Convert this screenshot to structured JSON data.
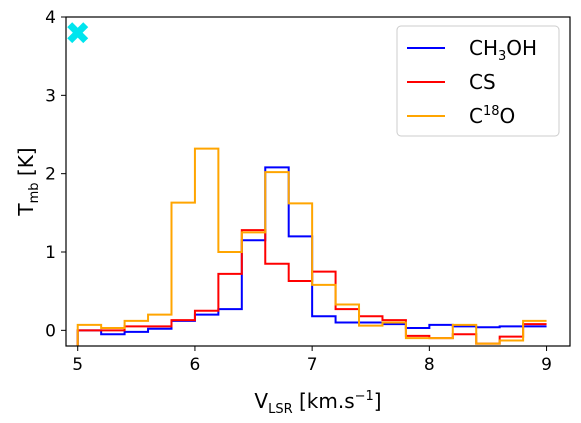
{
  "chart_data": {
    "type": "line",
    "step": true,
    "xlabel": {
      "main": "V",
      "sub": "LSR",
      "rest": " [km.s",
      "sup": "−1",
      "end": "]"
    },
    "ylabel": {
      "main": "T",
      "sub": "mb",
      "rest": " [K]"
    },
    "xlim": [
      4.9,
      9.2
    ],
    "ylim": [
      -0.2,
      4.0
    ],
    "xticks": [
      5,
      6,
      7,
      8,
      9
    ],
    "yticks": [
      0,
      1,
      2,
      3,
      4
    ],
    "grid": false,
    "legend_position": "top-right",
    "bin_edges": [
      5.0,
      5.2,
      5.4,
      5.6,
      5.8,
      6.0,
      6.2,
      6.4,
      6.6,
      6.8,
      7.0,
      7.2,
      7.4,
      7.6,
      7.8,
      8.0,
      8.2,
      8.4,
      8.6,
      8.8,
      9.0
    ],
    "series": [
      {
        "name": "CH3OH",
        "legend": {
          "pre": "CH",
          "sub": "3",
          "post": "OH"
        },
        "color": "#0000ff",
        "values": [
          0.0,
          -0.05,
          -0.02,
          0.02,
          0.12,
          0.2,
          0.27,
          1.15,
          2.08,
          1.2,
          0.18,
          0.1,
          0.1,
          0.08,
          0.03,
          0.07,
          0.05,
          0.04,
          0.05,
          0.05
        ]
      },
      {
        "name": "CS",
        "legend": {
          "pre": "CS",
          "sub": "",
          "post": ""
        },
        "color": "#ff0000",
        "values": [
          0.0,
          0.0,
          0.05,
          0.05,
          0.13,
          0.25,
          0.72,
          1.28,
          0.85,
          0.63,
          0.75,
          0.27,
          0.18,
          0.13,
          -0.07,
          -0.1,
          -0.05,
          -0.17,
          -0.08,
          0.08
        ]
      },
      {
        "name": "C18O",
        "legend": {
          "pre": "C",
          "sup": "18",
          "post": "O"
        },
        "color": "#ffa500",
        "values": [
          0.07,
          0.03,
          0.12,
          0.2,
          1.63,
          2.32,
          1.0,
          1.25,
          2.02,
          1.62,
          0.58,
          0.33,
          0.06,
          0.1,
          -0.1,
          -0.1,
          0.07,
          -0.17,
          -0.13,
          0.12
        ]
      }
    ],
    "marker": {
      "shape": "X",
      "color": "#00e5ee",
      "x": 5.0,
      "y": 3.8
    }
  }
}
